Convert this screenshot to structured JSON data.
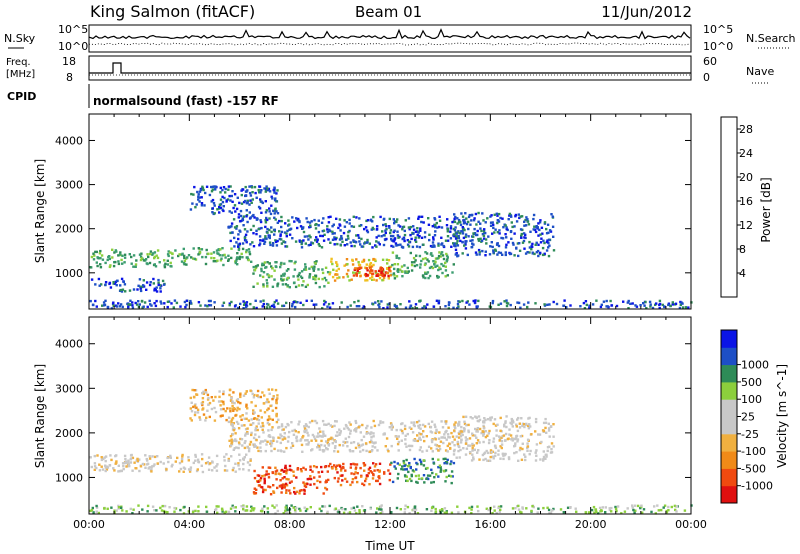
{
  "header": {
    "station": "King Salmon (fitACF)",
    "beam": "Beam 01",
    "date": "11/Jun/2012"
  },
  "noise_panel": {
    "left_label": "N.Sky",
    "right_label": "N.Search",
    "ticks_left": [
      "10^5",
      "10^0"
    ],
    "ticks_right": [
      "10^5",
      "10^0"
    ]
  },
  "freq_panel": {
    "left_label_line1": "Freq.",
    "left_label_line2": "[MHz]",
    "right_label": "Nave",
    "ticks_left": [
      "18",
      "8"
    ],
    "ticks_right": [
      "60",
      "0"
    ]
  },
  "cpid": {
    "label": "CPID",
    "program": "normalsound (fast) -157 RF"
  },
  "colors": {
    "power": [
      "#0a14e6",
      "#1d4fc6",
      "#2e8b57",
      "#3c9d70",
      "#8ccf3c",
      "#f0c020",
      "#f08a18",
      "#f04a10",
      "#e01010"
    ],
    "velocity": [
      "#e01010",
      "#f04a10",
      "#f08a18",
      "#f0b040",
      "#c8c8c8",
      "#c8c8c8",
      "#8ccf3c",
      "#2e8b57",
      "#1d4fc6",
      "#0a14e6"
    ]
  },
  "chart_data": [
    {
      "type": "heatmap",
      "panel": "power",
      "ylabel": "Slant Range [km]",
      "xlabel": "",
      "xlim": [
        0,
        24
      ],
      "ylim": [
        180,
        4600
      ],
      "y_ticks": [
        "1000",
        "2000",
        "3000",
        "4000"
      ],
      "y_tick_values": [
        1000,
        2000,
        3000,
        4000
      ],
      "colorbar": {
        "label": "Power [dB]",
        "ticks": [
          "4",
          "8",
          "12",
          "16",
          "20",
          "24",
          "28"
        ],
        "tick_values": [
          4,
          8,
          12,
          16,
          20,
          24,
          28
        ],
        "range": [
          0,
          30
        ]
      },
      "regions": [
        {
          "t0": 0.0,
          "t1": 3.5,
          "r0": 1150,
          "r1": 1550,
          "level": 3
        },
        {
          "t0": 3.5,
          "t1": 6.5,
          "r0": 1200,
          "r1": 1600,
          "level": 3
        },
        {
          "t0": 6.5,
          "t1": 9.5,
          "r0": 700,
          "r1": 1300,
          "level": 3
        },
        {
          "t0": 9.5,
          "t1": 12.0,
          "r0": 850,
          "r1": 1350,
          "level": 5
        },
        {
          "t0": 12.0,
          "t1": 14.5,
          "r0": 900,
          "r1": 1500,
          "level": 3
        },
        {
          "t0": 10.5,
          "t1": 12.0,
          "r0": 950,
          "r1": 1150,
          "level": 7
        },
        {
          "t0": 4.0,
          "t1": 7.5,
          "r0": 2300,
          "r1": 3000,
          "level": 1
        },
        {
          "t0": 5.5,
          "t1": 15.0,
          "r0": 1600,
          "r1": 2300,
          "level": 1
        },
        {
          "t0": 14.5,
          "t1": 18.5,
          "r0": 1400,
          "r1": 2400,
          "level": 1
        },
        {
          "t0": 0.0,
          "t1": 24.0,
          "r0": 220,
          "r1": 400,
          "level": 1
        },
        {
          "t0": 0.0,
          "t1": 3.0,
          "r0": 600,
          "r1": 900,
          "level": 1
        }
      ]
    },
    {
      "type": "heatmap",
      "panel": "velocity",
      "ylabel": "Slant Range [km]",
      "xlabel": "Time UT",
      "xlim": [
        0,
        24
      ],
      "ylim": [
        180,
        4600
      ],
      "x_ticks": [
        "00:00",
        "04:00",
        "08:00",
        "12:00",
        "16:00",
        "20:00",
        "00:00"
      ],
      "x_tick_values": [
        0,
        4,
        8,
        12,
        16,
        20,
        24
      ],
      "y_ticks": [
        "1000",
        "2000",
        "3000",
        "4000"
      ],
      "y_tick_values": [
        1000,
        2000,
        3000,
        4000
      ],
      "colorbar": {
        "label": "Velocity [m s^-1]",
        "ticks": [
          "-1000",
          "-500",
          "-100",
          "-25",
          "25",
          "100",
          "500",
          "1000"
        ],
        "tick_values": [
          -1000,
          -500,
          -100,
          -25,
          25,
          100,
          500,
          1000
        ]
      },
      "regions": [
        {
          "t0": 0.0,
          "t1": 6.5,
          "r0": 1150,
          "r1": 1550,
          "level": 4
        },
        {
          "t0": 6.5,
          "t1": 9.5,
          "r0": 650,
          "r1": 1300,
          "level": 1
        },
        {
          "t0": 9.5,
          "t1": 12.0,
          "r0": 850,
          "r1": 1350,
          "level": 1
        },
        {
          "t0": 12.0,
          "t1": 14.5,
          "r0": 900,
          "r1": 1450,
          "level": 7
        },
        {
          "t0": 4.0,
          "t1": 7.5,
          "r0": 2300,
          "r1": 3000,
          "level": 3
        },
        {
          "t0": 5.5,
          "t1": 15.0,
          "r0": 1600,
          "r1": 2300,
          "level": 4
        },
        {
          "t0": 14.5,
          "t1": 18.5,
          "r0": 1400,
          "r1": 2400,
          "level": 4
        },
        {
          "t0": 0.0,
          "t1": 24.0,
          "r0": 220,
          "r1": 400,
          "level": 6
        }
      ]
    }
  ]
}
